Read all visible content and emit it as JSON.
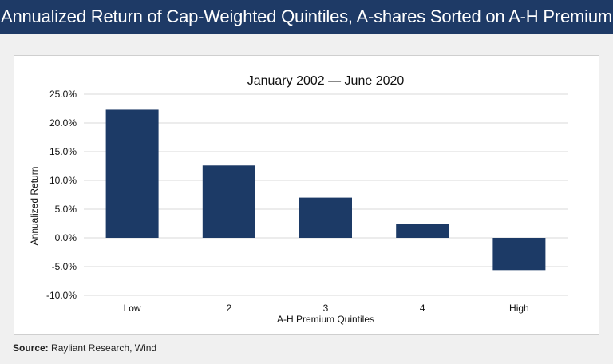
{
  "header": {
    "title": "Annualized Return of Cap-Weighted Quintiles, A-shares Sorted on A-H Premium"
  },
  "footer": {
    "source_label": "Source:",
    "source_text": "Rayliant Research, Wind"
  },
  "colors": {
    "banner": "#1e3a66",
    "bar": "#1c3a66",
    "gridline": "#d9d9d9",
    "background": "#f0f0f0"
  },
  "chart_data": {
    "type": "bar",
    "title": "January 2002 — June 2020",
    "xlabel": "A-H Premium Quintiles",
    "ylabel": "Annualized Return",
    "categories": [
      "Low",
      "2",
      "3",
      "4",
      "High"
    ],
    "values": [
      22.3,
      12.6,
      7.0,
      2.4,
      -5.6
    ],
    "ylim": [
      -10,
      25
    ],
    "yticks": [
      25,
      20,
      15,
      10,
      5,
      0,
      -5,
      -10
    ],
    "ytick_labels": [
      "25.0%",
      "20.0%",
      "15.0%",
      "10.0%",
      "5.0%",
      "0.0%",
      "-5.0%",
      "-10.0%"
    ],
    "grid": true,
    "legend": "none"
  }
}
